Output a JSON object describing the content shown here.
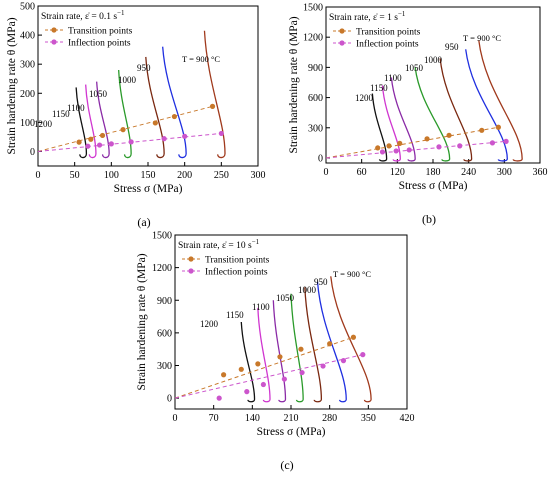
{
  "figure": {
    "background": "#ffffff"
  },
  "legend_labels": {
    "strain_rate_prefix": "Strain rate, ",
    "epsilon_dot": "ε̇",
    "transition": "Transition points",
    "inflection": "Inflection points"
  },
  "colors": {
    "transition": "#c8782a",
    "inflection": "#cc55cc",
    "T900": "#a0391c",
    "T950": "#1f2fe0",
    "T1000": "#7a2810",
    "T1050": "#2a9a2a",
    "T1100": "#8a2aa6",
    "T1150": "#d036d0",
    "T1200": "#111111"
  },
  "chart_data": [
    {
      "panel": "(a)",
      "type": "line",
      "strain_rate": " = 0.1 s",
      "strain_rate_exp": "−1",
      "xlabel": "Stress σ (MPa)",
      "ylabel": "Strain hardening rate θ (MPa)",
      "xlim": [
        0,
        300
      ],
      "ylim": [
        -50,
        500
      ],
      "xticks": [
        0,
        50,
        100,
        150,
        200,
        250,
        300
      ],
      "yticks": [
        0,
        100,
        200,
        300,
        400,
        500
      ],
      "temperature_labels": [
        "1200",
        "1150",
        "1100",
        "1050",
        "1000",
        "950",
        "T = 900 °C"
      ],
      "series": [
        {
          "temp": 1200,
          "top": [
            52,
            220
          ],
          "turn": 66,
          "end": 57,
          "floor": -25
        },
        {
          "temp": 1150,
          "top": [
            65,
            230
          ],
          "turn": 79,
          "end": 70,
          "floor": -25
        },
        {
          "temp": 1100,
          "top": [
            80,
            240
          ],
          "turn": 97,
          "end": 88,
          "floor": -25
        },
        {
          "temp": 1050,
          "top": [
            110,
            280
          ],
          "turn": 127,
          "end": 118,
          "floor": -25
        },
        {
          "temp": 1000,
          "top": [
            147,
            325
          ],
          "turn": 172,
          "end": 162,
          "floor": -25
        },
        {
          "temp": 950,
          "top": [
            170,
            360
          ],
          "turn": 202,
          "end": 192,
          "floor": -25
        },
        {
          "temp": 900,
          "top": [
            227,
            415
          ],
          "turn": 255,
          "end": 245,
          "floor": -25
        }
      ],
      "transition_points": [
        [
          56,
          32
        ],
        [
          72,
          42
        ],
        [
          88,
          55
        ],
        [
          116,
          75
        ],
        [
          160,
          98
        ],
        [
          186,
          120
        ],
        [
          238,
          155
        ]
      ],
      "inflection_points": [
        [
          68,
          18
        ],
        [
          84,
          22
        ],
        [
          100,
          26
        ],
        [
          127,
          33
        ],
        [
          172,
          44
        ],
        [
          200,
          52
        ],
        [
          250,
          62
        ]
      ]
    },
    {
      "panel": "(b)",
      "type": "line",
      "strain_rate": " = 1 s",
      "strain_rate_exp": "−1",
      "xlabel": "Stress σ (MPa)",
      "ylabel": "Strain hardening rate θ (MPa)",
      "xlim": [
        0,
        360
      ],
      "ylim": [
        -50,
        1500
      ],
      "xticks": [
        0,
        60,
        120,
        180,
        240,
        300,
        360
      ],
      "yticks": [
        0,
        300,
        600,
        900,
        1200,
        1500
      ],
      "temperature_labels": [
        "1200",
        "1150",
        "1100",
        "1050",
        "1000",
        "950",
        "T = 900 °C"
      ],
      "series": [
        {
          "temp": 1200,
          "top": [
            78,
            640
          ],
          "turn": 102,
          "end": 90,
          "floor": -35
        },
        {
          "temp": 1150,
          "top": [
            95,
            720
          ],
          "turn": 125,
          "end": 113,
          "floor": -35
        },
        {
          "temp": 1100,
          "top": [
            110,
            800
          ],
          "turn": 150,
          "end": 138,
          "floor": -35
        },
        {
          "temp": 1050,
          "top": [
            150,
            900
          ],
          "turn": 208,
          "end": 195,
          "floor": -35
        },
        {
          "temp": 1000,
          "top": [
            192,
            990
          ],
          "turn": 245,
          "end": 232,
          "floor": -35
        },
        {
          "temp": 950,
          "top": [
            235,
            1080
          ],
          "turn": 305,
          "end": 290,
          "floor": -35
        },
        {
          "temp": 900,
          "top": [
            257,
            1170
          ],
          "turn": 330,
          "end": 315,
          "floor": -35
        }
      ],
      "transition_points": [
        [
          87,
          100
        ],
        [
          106,
          120
        ],
        [
          124,
          145
        ],
        [
          170,
          190
        ],
        [
          207,
          225
        ],
        [
          262,
          275
        ],
        [
          290,
          305
        ]
      ],
      "inflection_points": [
        [
          95,
          60
        ],
        [
          118,
          70
        ],
        [
          140,
          80
        ],
        [
          190,
          110
        ],
        [
          225,
          120
        ],
        [
          280,
          150
        ],
        [
          303,
          165
        ]
      ]
    },
    {
      "panel": "(c)",
      "type": "line",
      "strain_rate": " = 10 s",
      "strain_rate_exp": "−1",
      "xlabel": "Stress σ (MPa)",
      "ylabel": "Strain hardening rate θ (MPa)",
      "xlim": [
        0,
        420
      ],
      "ylim": [
        -100,
        1500
      ],
      "xticks": [
        0,
        70,
        140,
        210,
        280,
        350,
        420
      ],
      "yticks": [
        0,
        300,
        600,
        900,
        1200,
        1500
      ],
      "temperature_labels": [
        "1200",
        "1150",
        "1100",
        "1050",
        "1000",
        "950",
        "T = 900 °C"
      ],
      "series": [
        {
          "temp": 1200,
          "top": [
            120,
            700
          ],
          "turn": 144,
          "end": 132,
          "floor": -40
        },
        {
          "temp": 1150,
          "top": [
            150,
            830
          ],
          "turn": 172,
          "end": 160,
          "floor": -40
        },
        {
          "temp": 1100,
          "top": [
            178,
            900
          ],
          "turn": 200,
          "end": 188,
          "floor": -40
        },
        {
          "temp": 1050,
          "top": [
            210,
            960
          ],
          "turn": 232,
          "end": 220,
          "floor": -40
        },
        {
          "temp": 1000,
          "top": [
            235,
            1020
          ],
          "turn": 265,
          "end": 252,
          "floor": -40
        },
        {
          "temp": 950,
          "top": [
            258,
            1070
          ],
          "turn": 310,
          "end": 298,
          "floor": -40
        },
        {
          "temp": 900,
          "top": [
            282,
            1120
          ],
          "turn": 355,
          "end": 343,
          "floor": -40
        }
      ],
      "transition_points": [
        [
          88,
          215
        ],
        [
          120,
          265
        ],
        [
          150,
          315
        ],
        [
          190,
          380
        ],
        [
          228,
          450
        ],
        [
          280,
          500
        ],
        [
          323,
          560
        ]
      ],
      "inflection_points": [
        [
          80,
          0
        ],
        [
          130,
          60
        ],
        [
          160,
          125
        ],
        [
          198,
          175
        ],
        [
          230,
          235
        ],
        [
          268,
          295
        ],
        [
          305,
          345
        ],
        [
          340,
          400
        ]
      ]
    }
  ]
}
